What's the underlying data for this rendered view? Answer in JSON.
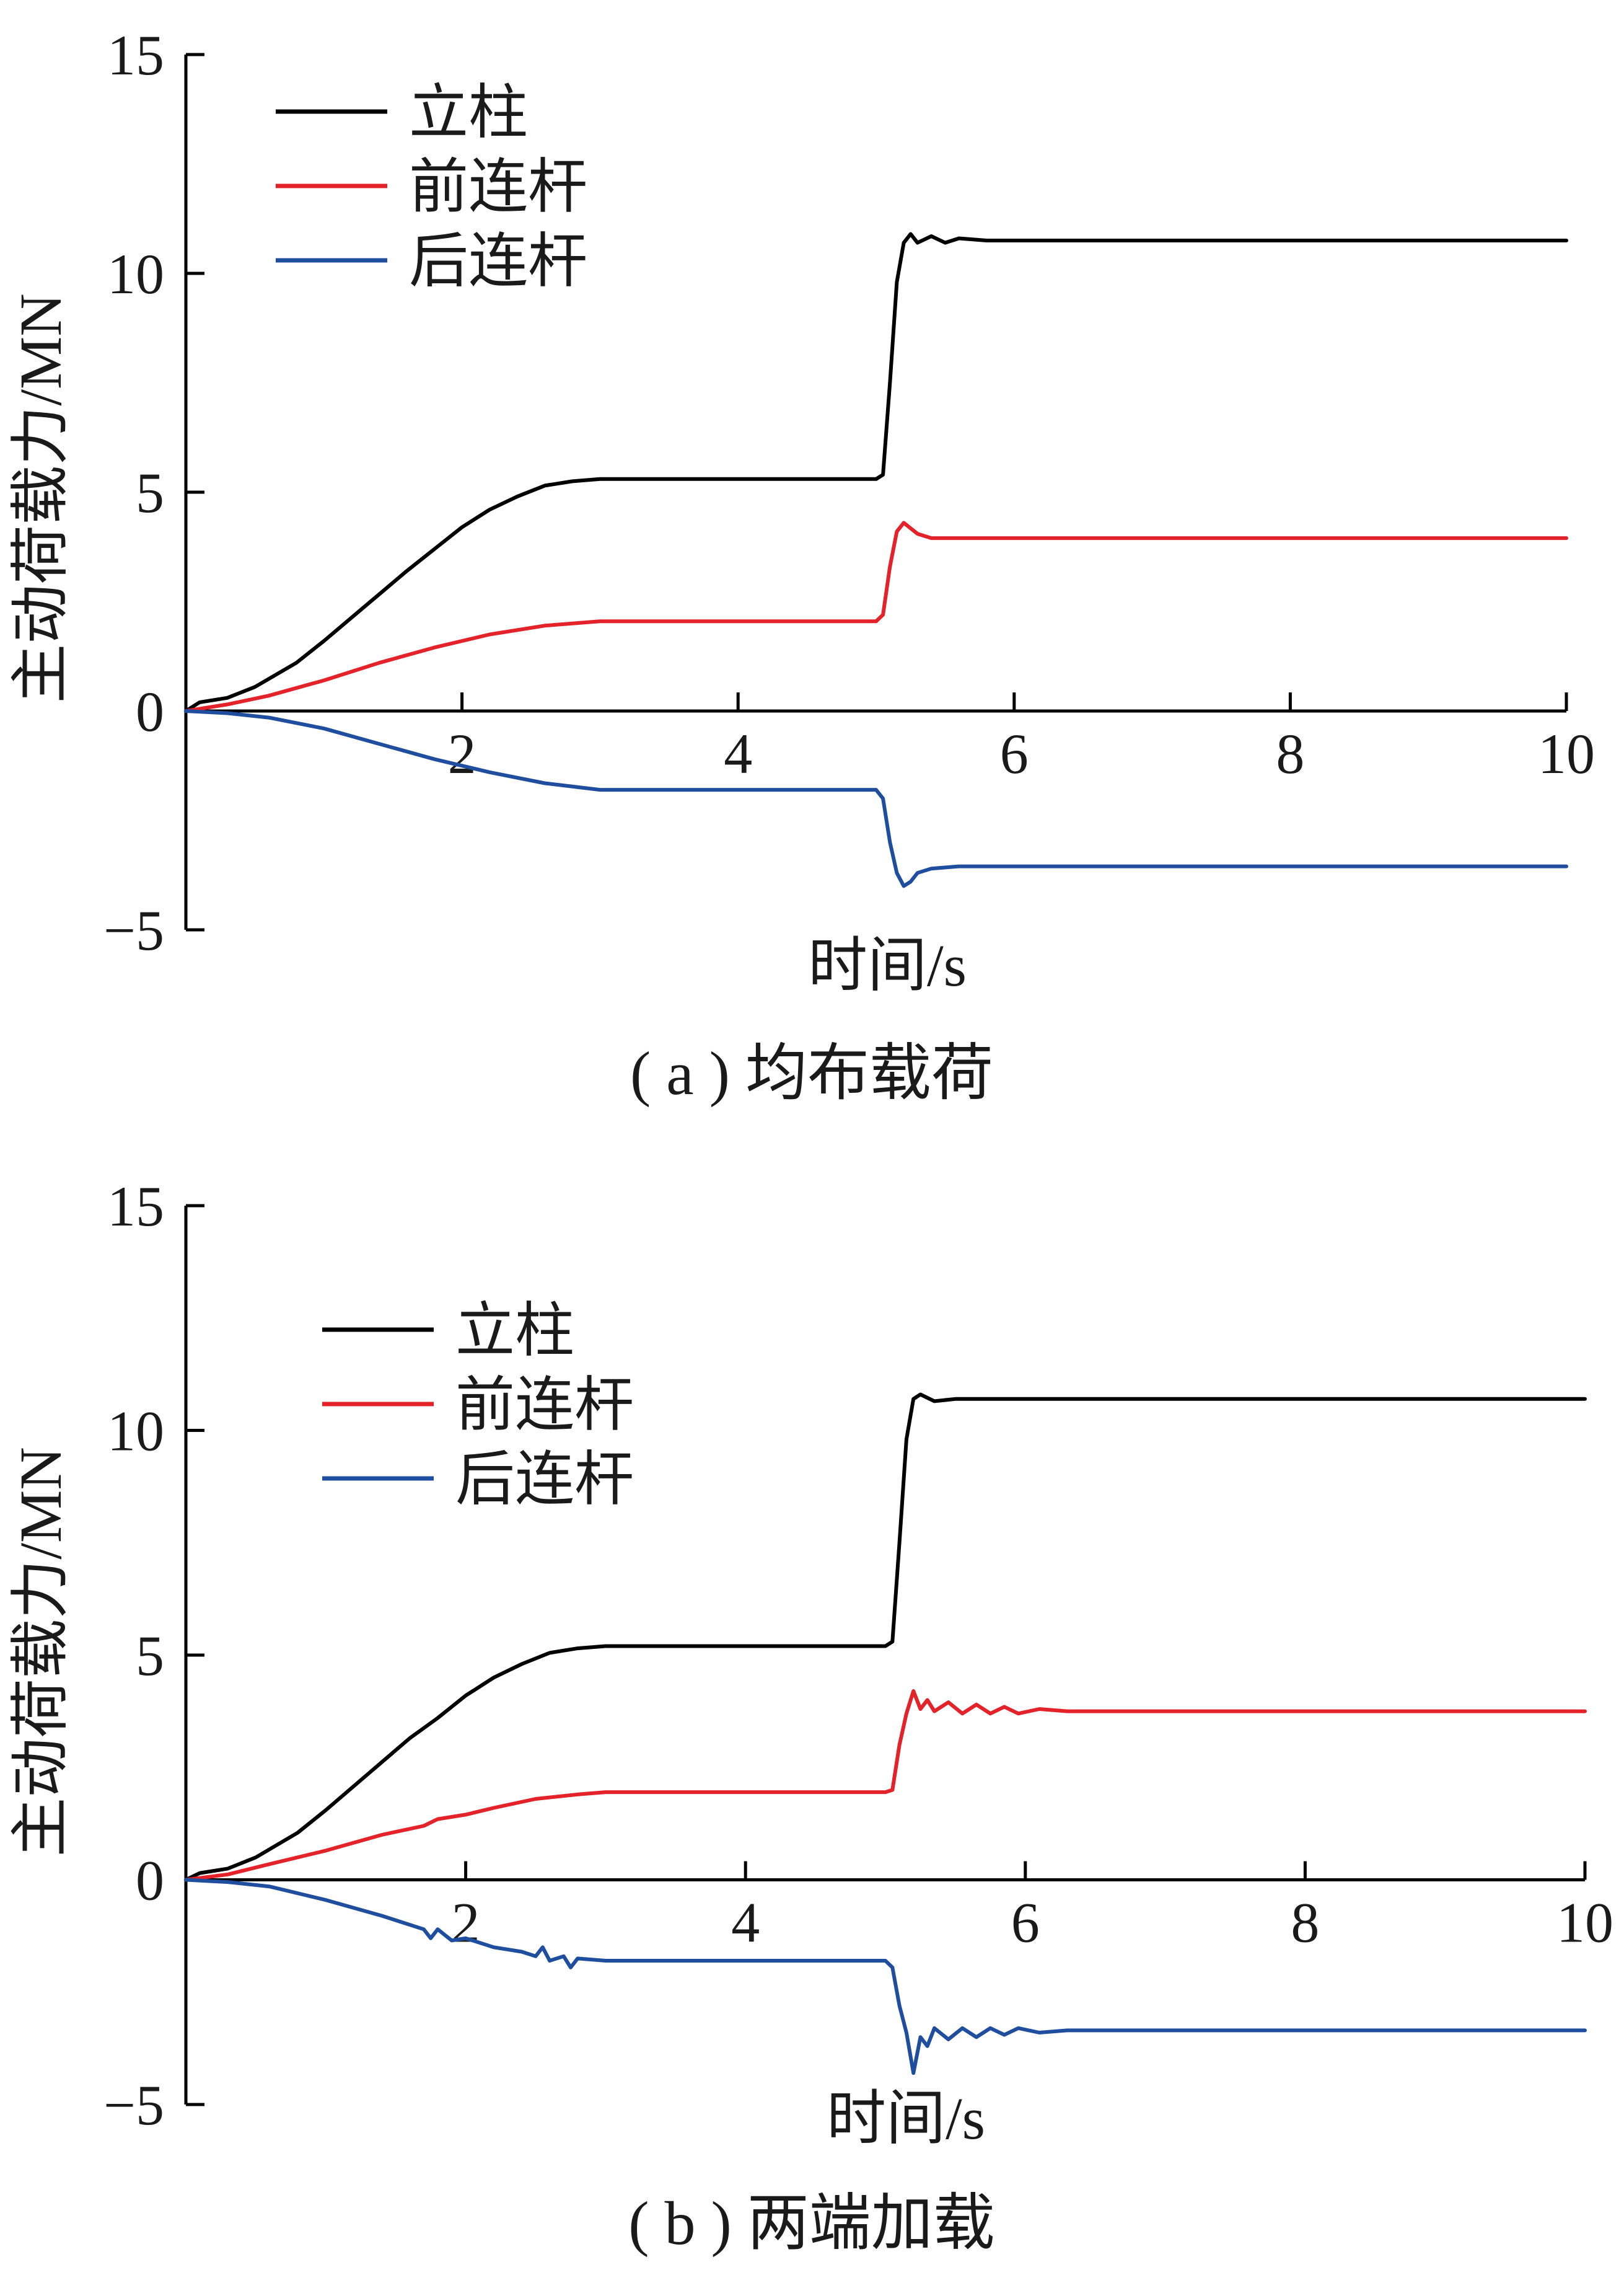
{
  "chart_data": [
    {
      "type": "line",
      "caption": "( a ) 均布载荷",
      "xlabel": "时间/s",
      "ylabel": "主动荷载力/MN",
      "xlim": [
        0,
        10
      ],
      "ylim": [
        -5,
        15
      ],
      "xticks": [
        "2",
        "4",
        "6",
        "8",
        "10"
      ],
      "yticks": [
        "−5",
        "0",
        "5",
        "10",
        "15"
      ],
      "grid": false,
      "legend_position": "top-left",
      "series": [
        {
          "name": "立柱",
          "color": "#000000",
          "points": [
            [
              0,
              0
            ],
            [
              0.1,
              0.2
            ],
            [
              0.3,
              0.3
            ],
            [
              0.5,
              0.55
            ],
            [
              0.8,
              1.1
            ],
            [
              1.0,
              1.6
            ],
            [
              1.3,
              2.4
            ],
            [
              1.6,
              3.2
            ],
            [
              1.8,
              3.7
            ],
            [
              2.0,
              4.2
            ],
            [
              2.2,
              4.6
            ],
            [
              2.4,
              4.9
            ],
            [
              2.6,
              5.15
            ],
            [
              2.8,
              5.25
            ],
            [
              3.0,
              5.3
            ],
            [
              3.5,
              5.3
            ],
            [
              4.0,
              5.3
            ],
            [
              4.5,
              5.3
            ],
            [
              5.0,
              5.3
            ],
            [
              5.05,
              5.4
            ],
            [
              5.1,
              7.5
            ],
            [
              5.15,
              9.8
            ],
            [
              5.2,
              10.7
            ],
            [
              5.25,
              10.9
            ],
            [
              5.3,
              10.7
            ],
            [
              5.4,
              10.85
            ],
            [
              5.5,
              10.7
            ],
            [
              5.6,
              10.8
            ],
            [
              5.8,
              10.75
            ],
            [
              6.0,
              10.75
            ],
            [
              7.0,
              10.75
            ],
            [
              8.0,
              10.75
            ],
            [
              9.0,
              10.75
            ],
            [
              10.0,
              10.75
            ]
          ]
        },
        {
          "name": "前连杆",
          "color": "#e3222a",
          "points": [
            [
              0,
              0
            ],
            [
              0.3,
              0.15
            ],
            [
              0.6,
              0.35
            ],
            [
              1.0,
              0.7
            ],
            [
              1.4,
              1.1
            ],
            [
              1.8,
              1.45
            ],
            [
              2.2,
              1.75
            ],
            [
              2.6,
              1.95
            ],
            [
              3.0,
              2.05
            ],
            [
              3.5,
              2.05
            ],
            [
              4.0,
              2.05
            ],
            [
              4.5,
              2.05
            ],
            [
              5.0,
              2.05
            ],
            [
              5.05,
              2.2
            ],
            [
              5.1,
              3.3
            ],
            [
              5.15,
              4.1
            ],
            [
              5.2,
              4.3
            ],
            [
              5.3,
              4.05
            ],
            [
              5.4,
              3.95
            ],
            [
              5.6,
              3.95
            ],
            [
              6.0,
              3.95
            ],
            [
              7.0,
              3.95
            ],
            [
              8.0,
              3.95
            ],
            [
              9.0,
              3.95
            ],
            [
              10.0,
              3.95
            ]
          ]
        },
        {
          "name": "后连杆",
          "color": "#1f4e9e",
          "points": [
            [
              0,
              0
            ],
            [
              0.3,
              -0.05
            ],
            [
              0.6,
              -0.15
            ],
            [
              1.0,
              -0.4
            ],
            [
              1.4,
              -0.75
            ],
            [
              1.8,
              -1.1
            ],
            [
              2.2,
              -1.4
            ],
            [
              2.6,
              -1.65
            ],
            [
              3.0,
              -1.8
            ],
            [
              3.5,
              -1.8
            ],
            [
              4.0,
              -1.8
            ],
            [
              4.5,
              -1.8
            ],
            [
              5.0,
              -1.8
            ],
            [
              5.05,
              -2.0
            ],
            [
              5.1,
              -3.0
            ],
            [
              5.15,
              -3.7
            ],
            [
              5.2,
              -4.0
            ],
            [
              5.25,
              -3.9
            ],
            [
              5.3,
              -3.7
            ],
            [
              5.4,
              -3.6
            ],
            [
              5.6,
              -3.55
            ],
            [
              6.0,
              -3.55
            ],
            [
              7.0,
              -3.55
            ],
            [
              8.0,
              -3.55
            ],
            [
              9.0,
              -3.55
            ],
            [
              10.0,
              -3.55
            ]
          ]
        }
      ]
    },
    {
      "type": "line",
      "caption": "( b ) 两端加载",
      "xlabel": "时间/s",
      "ylabel": "主动荷载力/MN",
      "xlim": [
        0,
        10
      ],
      "ylim": [
        -5,
        15
      ],
      "xticks": [
        "2",
        "4",
        "6",
        "8",
        "10"
      ],
      "yticks": [
        "−5",
        "0",
        "5",
        "10",
        "15"
      ],
      "grid": false,
      "legend_position": "top-left",
      "series": [
        {
          "name": "立柱",
          "color": "#000000",
          "points": [
            [
              0,
              0
            ],
            [
              0.1,
              0.15
            ],
            [
              0.3,
              0.25
            ],
            [
              0.5,
              0.5
            ],
            [
              0.8,
              1.05
            ],
            [
              1.0,
              1.55
            ],
            [
              1.3,
              2.35
            ],
            [
              1.6,
              3.15
            ],
            [
              1.8,
              3.6
            ],
            [
              2.0,
              4.1
            ],
            [
              2.2,
              4.5
            ],
            [
              2.4,
              4.8
            ],
            [
              2.6,
              5.05
            ],
            [
              2.8,
              5.15
            ],
            [
              3.0,
              5.2
            ],
            [
              3.5,
              5.2
            ],
            [
              4.0,
              5.2
            ],
            [
              4.5,
              5.2
            ],
            [
              5.0,
              5.2
            ],
            [
              5.05,
              5.3
            ],
            [
              5.1,
              7.5
            ],
            [
              5.15,
              9.8
            ],
            [
              5.2,
              10.7
            ],
            [
              5.25,
              10.8
            ],
            [
              5.35,
              10.65
            ],
            [
              5.5,
              10.7
            ],
            [
              6.0,
              10.7
            ],
            [
              7.0,
              10.7
            ],
            [
              8.0,
              10.7
            ],
            [
              9.0,
              10.7
            ],
            [
              10.0,
              10.7
            ]
          ]
        },
        {
          "name": "前连杆",
          "color": "#e3222a",
          "points": [
            [
              0,
              0
            ],
            [
              0.3,
              0.12
            ],
            [
              0.6,
              0.35
            ],
            [
              1.0,
              0.65
            ],
            [
              1.4,
              1.0
            ],
            [
              1.7,
              1.2
            ],
            [
              1.8,
              1.35
            ],
            [
              2.0,
              1.45
            ],
            [
              2.2,
              1.6
            ],
            [
              2.5,
              1.8
            ],
            [
              2.8,
              1.9
            ],
            [
              3.0,
              1.95
            ],
            [
              3.5,
              1.95
            ],
            [
              4.0,
              1.95
            ],
            [
              4.5,
              1.95
            ],
            [
              5.0,
              1.95
            ],
            [
              5.05,
              2.0
            ],
            [
              5.1,
              3.0
            ],
            [
              5.15,
              3.7
            ],
            [
              5.2,
              4.2
            ],
            [
              5.25,
              3.8
            ],
            [
              5.3,
              4.0
            ],
            [
              5.35,
              3.75
            ],
            [
              5.45,
              3.95
            ],
            [
              5.55,
              3.7
            ],
            [
              5.65,
              3.9
            ],
            [
              5.75,
              3.7
            ],
            [
              5.85,
              3.85
            ],
            [
              5.95,
              3.7
            ],
            [
              6.1,
              3.8
            ],
            [
              6.3,
              3.75
            ],
            [
              7.0,
              3.75
            ],
            [
              8.0,
              3.75
            ],
            [
              9.0,
              3.75
            ],
            [
              10.0,
              3.75
            ]
          ]
        },
        {
          "name": "后连杆",
          "color": "#1f4e9e",
          "points": [
            [
              0,
              0
            ],
            [
              0.3,
              -0.05
            ],
            [
              0.6,
              -0.15
            ],
            [
              1.0,
              -0.45
            ],
            [
              1.4,
              -0.8
            ],
            [
              1.7,
              -1.1
            ],
            [
              1.75,
              -1.3
            ],
            [
              1.8,
              -1.1
            ],
            [
              1.9,
              -1.35
            ],
            [
              2.0,
              -1.3
            ],
            [
              2.2,
              -1.5
            ],
            [
              2.4,
              -1.6
            ],
            [
              2.5,
              -1.7
            ],
            [
              2.55,
              -1.5
            ],
            [
              2.6,
              -1.8
            ],
            [
              2.7,
              -1.7
            ],
            [
              2.75,
              -1.95
            ],
            [
              2.8,
              -1.75
            ],
            [
              3.0,
              -1.8
            ],
            [
              3.5,
              -1.8
            ],
            [
              4.0,
              -1.8
            ],
            [
              4.5,
              -1.8
            ],
            [
              5.0,
              -1.8
            ],
            [
              5.05,
              -1.95
            ],
            [
              5.1,
              -2.8
            ],
            [
              5.15,
              -3.4
            ],
            [
              5.2,
              -4.3
            ],
            [
              5.25,
              -3.5
            ],
            [
              5.3,
              -3.7
            ],
            [
              5.35,
              -3.3
            ],
            [
              5.45,
              -3.55
            ],
            [
              5.55,
              -3.3
            ],
            [
              5.65,
              -3.5
            ],
            [
              5.75,
              -3.3
            ],
            [
              5.85,
              -3.45
            ],
            [
              5.95,
              -3.3
            ],
            [
              6.1,
              -3.4
            ],
            [
              6.3,
              -3.35
            ],
            [
              7.0,
              -3.35
            ],
            [
              8.0,
              -3.35
            ],
            [
              9.0,
              -3.35
            ],
            [
              10.0,
              -3.35
            ]
          ]
        }
      ]
    }
  ]
}
